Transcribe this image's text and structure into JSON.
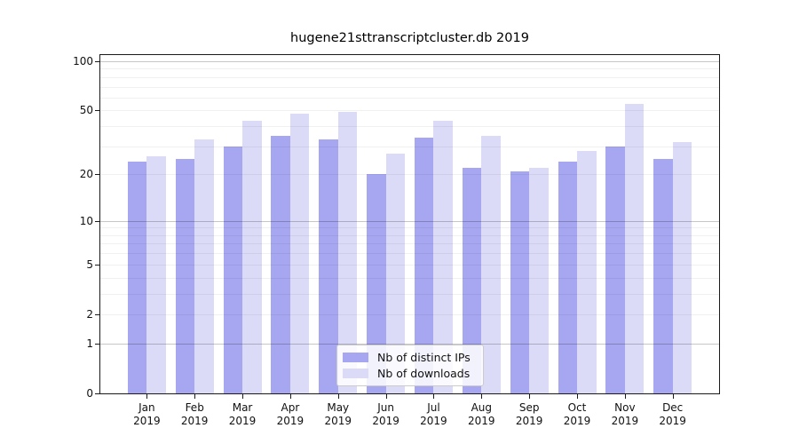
{
  "chart_data": {
    "type": "bar",
    "title": "hugene21sttranscriptcluster.db 2019",
    "categories": [
      "Jan",
      "Feb",
      "Mar",
      "Apr",
      "May",
      "Jun",
      "Jul",
      "Aug",
      "Sep",
      "Oct",
      "Nov",
      "Dec"
    ],
    "category_year": "2019",
    "series": [
      {
        "name": "Nb of distinct IPs",
        "color": "#a6a6f1",
        "values": [
          24,
          25,
          30,
          35,
          33,
          20,
          34,
          22,
          21,
          24,
          30,
          25
        ]
      },
      {
        "name": "Nb of downloads",
        "color": "#dbdbf8",
        "values": [
          26,
          33,
          43,
          48,
          49,
          27,
          43,
          35,
          22,
          28,
          55,
          32
        ]
      }
    ],
    "y_ticks": [
      0,
      1,
      2,
      5,
      10,
      20,
      50,
      100
    ],
    "y_scale": "log1p",
    "ylim": [
      0,
      110
    ],
    "grid": "on",
    "major_grid_values": [
      1,
      10,
      100
    ],
    "minor_grid_values": [
      2,
      3,
      4,
      5,
      6,
      7,
      8,
      9,
      20,
      30,
      40,
      50,
      60,
      70,
      80,
      90
    ],
    "legend_position": "lower center",
    "axis_color": "#1a1a1a"
  }
}
